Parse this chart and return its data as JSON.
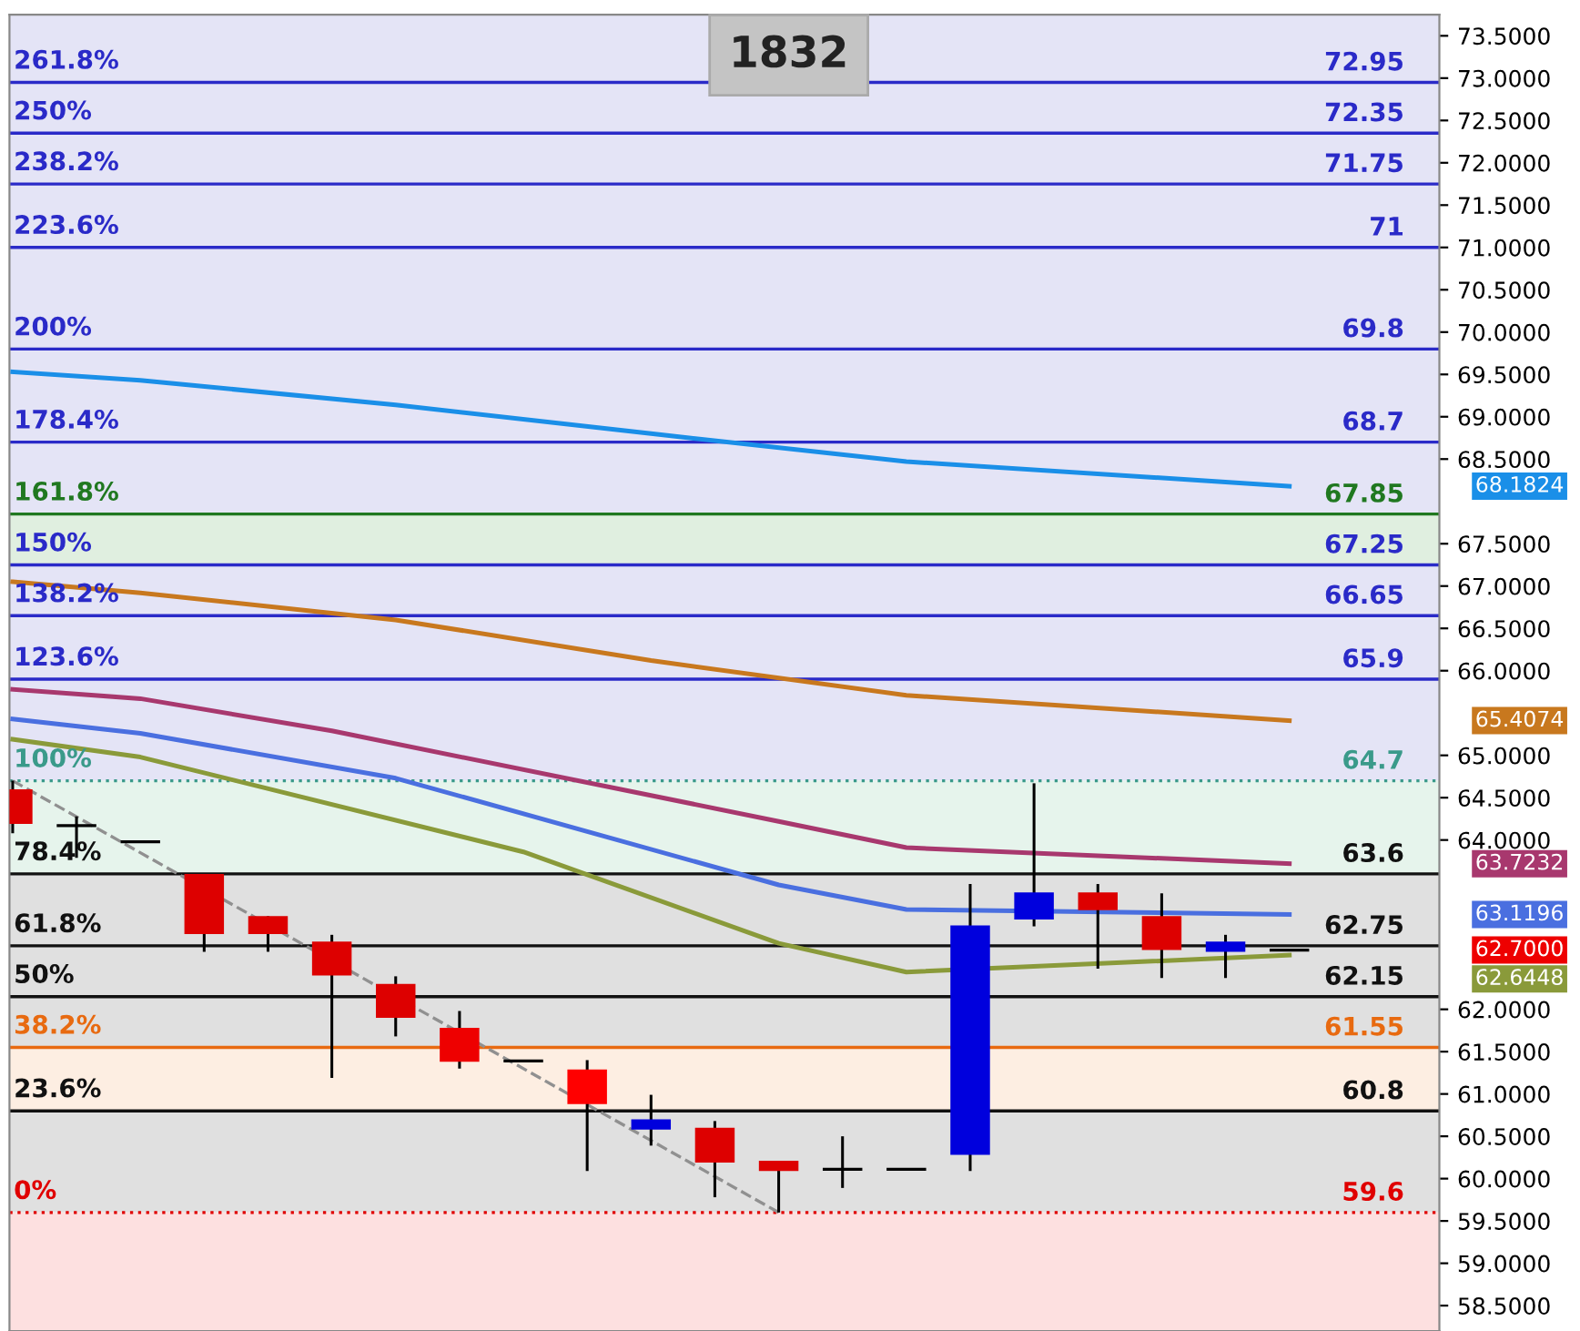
{
  "chart_data": {
    "type": "candlestick",
    "title": "1832",
    "categories": [
      null,
      null,
      null,
      null,
      null,
      null,
      null,
      null,
      null,
      null,
      null,
      null,
      null,
      null,
      null,
      null,
      null,
      null,
      null,
      null,
      null
    ],
    "ohlc": [
      [
        64.6,
        64.7,
        64.08,
        64.19
      ],
      [
        64.17,
        64.28,
        63.79,
        64.17
      ],
      [
        63.98,
        63.98,
        63.98,
        63.98
      ],
      [
        63.6,
        63.6,
        62.68,
        62.89
      ],
      [
        63.1,
        63.1,
        62.68,
        62.89
      ],
      [
        62.8,
        62.88,
        61.19,
        62.4
      ],
      [
        62.3,
        62.39,
        61.68,
        61.9
      ],
      [
        61.78,
        61.98,
        61.3,
        61.38
      ],
      [
        61.39,
        61.39,
        61.39,
        61.39
      ],
      [
        61.29,
        61.4,
        60.09,
        60.88
      ],
      [
        60.58,
        60.99,
        60.39,
        60.7
      ],
      [
        60.6,
        60.68,
        59.78,
        60.19
      ],
      [
        60.21,
        60.21,
        59.6,
        60.09
      ],
      [
        60.11,
        60.5,
        59.89,
        60.11
      ],
      [
        60.11,
        60.11,
        60.11,
        60.11
      ],
      [
        60.28,
        63.48,
        60.09,
        62.99
      ],
      [
        63.06,
        64.67,
        62.98,
        63.38
      ],
      [
        63.38,
        63.48,
        62.48,
        63.17
      ],
      [
        63.1,
        63.37,
        62.37,
        62.7
      ],
      [
        62.68,
        62.88,
        62.37,
        62.8
      ],
      [
        62.7,
        62.7,
        62.7,
        62.7
      ]
    ],
    "colors": [
      "#dd0000",
      "#000000",
      "#000000",
      "#dd0000",
      "#dd0000",
      "#dd0000",
      "#dd0000",
      "#ee0000",
      "#000000",
      "#ff0000",
      "#0000dd",
      "#dd0000",
      "#dd0000",
      "#000000",
      "#000000",
      "#0000dd",
      "#0000dd",
      "#dd0000",
      "#dd0000",
      "#0000dd",
      "#000000"
    ],
    "series": [
      {
        "type": "line",
        "color": "#1a8fe8",
        "values": [
          69.53,
          null,
          69.43,
          null,
          null,
          null,
          69.14,
          null,
          null,
          null,
          68.8,
          null,
          null,
          null,
          68.47,
          null,
          null,
          null,
          null,
          null,
          68.18
        ]
      },
      {
        "type": "line",
        "color": "#c8781e",
        "values": [
          67.05,
          null,
          66.92,
          null,
          null,
          null,
          66.6,
          null,
          null,
          null,
          66.12,
          null,
          null,
          null,
          65.71,
          null,
          null,
          null,
          null,
          null,
          65.41
        ]
      },
      {
        "type": "line",
        "color": "#a8386e",
        "values": [
          65.78,
          null,
          65.67,
          null,
          null,
          65.29,
          null,
          null,
          null,
          null,
          null,
          null,
          64.22,
          null,
          63.91,
          null,
          null,
          null,
          null,
          null,
          63.72
        ]
      },
      {
        "type": "line",
        "color": "#4a6fe0",
        "values": [
          65.43,
          null,
          65.26,
          null,
          null,
          null,
          64.73,
          null,
          null,
          null,
          null,
          null,
          63.47,
          null,
          63.18,
          null,
          null,
          null,
          null,
          null,
          63.12
        ]
      },
      {
        "type": "line",
        "color": "#8a9a3a",
        "values": [
          65.19,
          null,
          64.98,
          null,
          null,
          null,
          null,
          null,
          63.86,
          null,
          null,
          null,
          62.78,
          null,
          62.44,
          null,
          null,
          null,
          null,
          null,
          62.64
        ]
      },
      {
        "type": "line",
        "color": "#909090",
        "line_style": "dashed",
        "values": [
          64.7,
          null,
          null,
          null,
          null,
          null,
          null,
          null,
          null,
          null,
          null,
          null,
          59.6,
          null,
          null,
          null,
          null,
          null,
          null,
          null,
          null
        ]
      }
    ],
    "ylim": [
      58.2,
      73.75
    ],
    "yticks": [
      {
        "value": 58.5,
        "label": "58.5000"
      },
      {
        "value": 59,
        "label": "59.0000"
      },
      {
        "value": 59.5,
        "label": "59.5000"
      },
      {
        "value": 60,
        "label": "60.0000"
      },
      {
        "value": 60.5,
        "label": "60.5000"
      },
      {
        "value": 61,
        "label": "61.0000"
      },
      {
        "value": 61.5,
        "label": "61.5000"
      },
      {
        "value": 62,
        "label": "62.0000"
      },
      {
        "value": 64,
        "label": "64.0000"
      },
      {
        "value": 64.5,
        "label": "64.5000"
      },
      {
        "value": 65,
        "label": "65.0000"
      },
      {
        "value": 66,
        "label": "66.0000"
      },
      {
        "value": 66.5,
        "label": "66.5000"
      },
      {
        "value": 67,
        "label": "67.0000"
      },
      {
        "value": 67.5,
        "label": "67.5000"
      },
      {
        "value": 68.5,
        "label": "68.5000"
      },
      {
        "value": 69,
        "label": "69.0000"
      },
      {
        "value": 69.5,
        "label": "69.5000"
      },
      {
        "value": 70,
        "label": "70.0000"
      },
      {
        "value": 70.5,
        "label": "70.5000"
      },
      {
        "value": 71,
        "label": "71.0000"
      },
      {
        "value": 71.5,
        "label": "71.5000"
      },
      {
        "value": 72,
        "label": "72.0000"
      },
      {
        "value": 72.5,
        "label": "72.5000"
      },
      {
        "value": 73,
        "label": "73.0000"
      },
      {
        "value": 73.5,
        "label": "73.5000"
      }
    ],
    "tick_labels": "y",
    "bands": [
      {
        "axis": "y",
        "from": 67.85,
        "to": 73.75,
        "color": "#e4e4f6"
      },
      {
        "axis": "y",
        "from": 67.25,
        "to": 67.85,
        "color": "#e0efe0"
      },
      {
        "axis": "y",
        "from": 64.7,
        "to": 67.25,
        "color": "#e4e4f6"
      },
      {
        "axis": "y",
        "from": 63.6,
        "to": 64.7,
        "color": "#e6f4ec"
      },
      {
        "axis": "y",
        "from": 61.55,
        "to": 63.6,
        "color": "#e0e0e0"
      },
      {
        "axis": "y",
        "from": 60.8,
        "to": 61.55,
        "color": "#fdeee2"
      },
      {
        "axis": "y",
        "from": 59.6,
        "to": 60.8,
        "color": "#e0e0e0"
      },
      {
        "axis": "y",
        "from": 58.2,
        "to": 59.6,
        "color": "#fde0e0"
      }
    ],
    "ref_lines": [
      {
        "axis": "y",
        "value": 72.95,
        "label": "72.95",
        "color": "#2a2ac8"
      },
      {
        "axis": "y",
        "value": 72.35,
        "label": "72.35",
        "color": "#2a2ac8"
      },
      {
        "axis": "y",
        "value": 71.75,
        "label": "71.75",
        "color": "#2a2ac8"
      },
      {
        "axis": "y",
        "value": 71,
        "label": "71",
        "color": "#2a2ac8"
      },
      {
        "axis": "y",
        "value": 69.8,
        "label": "69.8",
        "color": "#2a2ac8"
      },
      {
        "axis": "y",
        "value": 68.7,
        "label": "68.7",
        "color": "#2a2ac8"
      },
      {
        "axis": "y",
        "value": 67.85,
        "label": "67.85",
        "color": "#207820"
      },
      {
        "axis": "y",
        "value": 67.25,
        "label": "67.25",
        "color": "#2a2ac8"
      },
      {
        "axis": "y",
        "value": 66.65,
        "label": "66.65",
        "color": "#2a2ac8"
      },
      {
        "axis": "y",
        "value": 65.9,
        "label": "65.9",
        "color": "#2a2ac8"
      },
      {
        "axis": "y",
        "value": 64.7,
        "label": "64.7",
        "color": "#3a9a8a",
        "line_style": "dotted"
      },
      {
        "axis": "y",
        "value": 63.6,
        "label": "63.6",
        "color": "#111111"
      },
      {
        "axis": "y",
        "value": 62.75,
        "label": "62.75",
        "color": "#111111"
      },
      {
        "axis": "y",
        "value": 62.15,
        "label": "62.15",
        "color": "#111111"
      },
      {
        "axis": "y",
        "value": 61.55,
        "label": "61.55",
        "color": "#e86a10"
      },
      {
        "axis": "y",
        "value": 60.8,
        "label": "60.8",
        "color": "#111111"
      },
      {
        "axis": "y",
        "value": 59.6,
        "label": "59.6",
        "color": "#e00000",
        "line_style": "dotted"
      }
    ],
    "annotations": [
      {
        "text": "261.8%",
        "y": 72.95
      },
      {
        "text": "250%",
        "y": 72.35
      },
      {
        "text": "238.2%",
        "y": 71.75
      },
      {
        "text": "223.6%",
        "y": 71
      },
      {
        "text": "200%",
        "y": 69.8
      },
      {
        "text": "178.4%",
        "y": 68.7
      },
      {
        "text": "161.8%",
        "y": 67.85
      },
      {
        "text": "150%",
        "y": 67.25
      },
      {
        "text": "138.2%",
        "y": 66.65
      },
      {
        "text": "123.6%",
        "y": 65.9
      },
      {
        "text": "100%",
        "y": 64.7
      },
      {
        "text": "78.4%",
        "y": 63.6
      },
      {
        "text": "61.8%",
        "y": 62.75
      },
      {
        "text": "50%",
        "y": 62.15
      },
      {
        "text": "38.2%",
        "y": 61.55
      },
      {
        "text": "23.6%",
        "y": 60.8
      },
      {
        "text": "0%",
        "y": 59.6
      },
      "68.1824",
      "65.4074",
      "63.7232",
      "63.1196",
      "62.6448",
      "62.7000"
    ]
  }
}
